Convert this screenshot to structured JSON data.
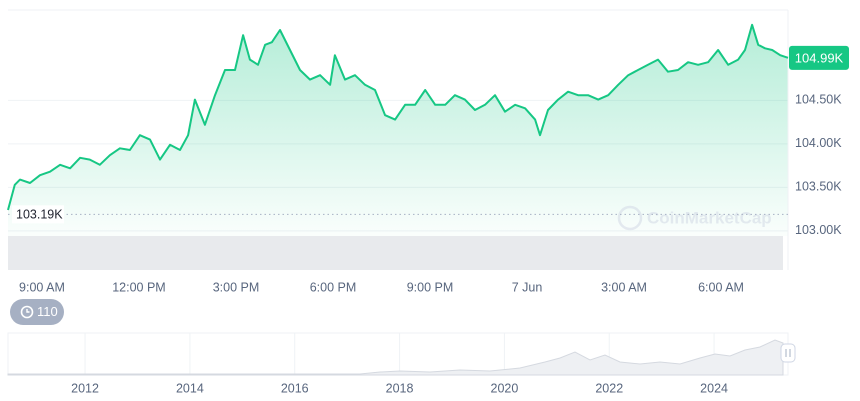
{
  "chart_data": {
    "type": "line",
    "color": "#16c784",
    "x": [
      -1.05,
      -0.84,
      -0.68,
      -0.37,
      -0.06,
      0.25,
      0.56,
      0.87,
      1.18,
      1.48,
      1.79,
      2.1,
      2.41,
      2.72,
      3.03,
      3.34,
      3.65,
      3.96,
      4.27,
      4.52,
      4.73,
      5.04,
      5.35,
      5.66,
      5.97,
      6.22,
      6.43,
      6.68,
      6.9,
      7.11,
      7.36,
      7.67,
      7.98,
      8.29,
      8.6,
      8.91,
      9.06,
      9.37,
      9.68,
      9.99,
      10.3,
      10.61,
      10.92,
      11.23,
      11.54,
      11.85,
      12.16,
      12.47,
      12.77,
      13.08,
      13.39,
      13.7,
      14.01,
      14.32,
      14.63,
      14.94,
      15.25,
      15.4,
      15.65,
      15.96,
      16.27,
      16.58,
      16.89,
      17.2,
      17.51,
      17.82,
      18.13,
      18.43,
      18.74,
      19.05,
      19.36,
      19.67,
      19.98,
      20.29,
      20.6,
      20.91,
      21.22,
      21.53,
      21.74,
      21.96,
      22.15,
      22.36,
      22.58,
      22.83,
      23.07
    ],
    "values": [
      103240,
      103530,
      103590,
      103550,
      103640,
      103680,
      103760,
      103720,
      103840,
      103820,
      103760,
      103870,
      103950,
      103930,
      104100,
      104050,
      103820,
      103990,
      103930,
      104100,
      104510,
      104220,
      104560,
      104850,
      104850,
      105250,
      104970,
      104910,
      105140,
      105170,
      105310,
      105080,
      104850,
      104740,
      104790,
      104680,
      105020,
      104740,
      104790,
      104680,
      104620,
      104330,
      104280,
      104450,
      104450,
      104620,
      104450,
      104450,
      104560,
      104510,
      104390,
      104450,
      104560,
      104370,
      104450,
      104410,
      104280,
      104100,
      104390,
      104510,
      104600,
      104560,
      104560,
      104510,
      104560,
      104680,
      104790,
      104850,
      104910,
      104970,
      104830,
      104850,
      104940,
      104910,
      104940,
      105080,
      104910,
      104970,
      105080,
      105370,
      105140,
      105100,
      105080,
      105020,
      104990
    ],
    "xlim": [
      -1.05,
      23.07
    ],
    "xticks": [
      {
        "value": 0,
        "label": "9:00 AM"
      },
      {
        "value": 3,
        "label": "12:00 PM"
      },
      {
        "value": 6,
        "label": "3:00 PM"
      },
      {
        "value": 9,
        "label": "6:00 PM"
      },
      {
        "value": 12,
        "label": "9:00 PM"
      },
      {
        "value": 15,
        "label": "7 Jun"
      },
      {
        "value": 18,
        "label": "3:00 AM"
      },
      {
        "value": 21,
        "label": "6:00 AM"
      }
    ],
    "ylim": [
      102550,
      105540
    ],
    "yticks": [
      {
        "value": 103000,
        "label": "103.00K"
      },
      {
        "value": 103500,
        "label": "103.50K"
      },
      {
        "value": 104000,
        "label": "104.00K"
      },
      {
        "value": 104500,
        "label": "104.50K"
      }
    ],
    "grid": true,
    "reference": {
      "value": 103190,
      "label": "103.19K"
    },
    "last_price": {
      "value": 104990,
      "label": "104.99K"
    },
    "watermark": "CoinMarketCap",
    "badge": "110",
    "navigator": {
      "xlim": [
        2010.53,
        2025.41
      ],
      "xticks": [
        2012,
        2014,
        2016,
        2018,
        2020,
        2022,
        2024
      ]
    }
  }
}
